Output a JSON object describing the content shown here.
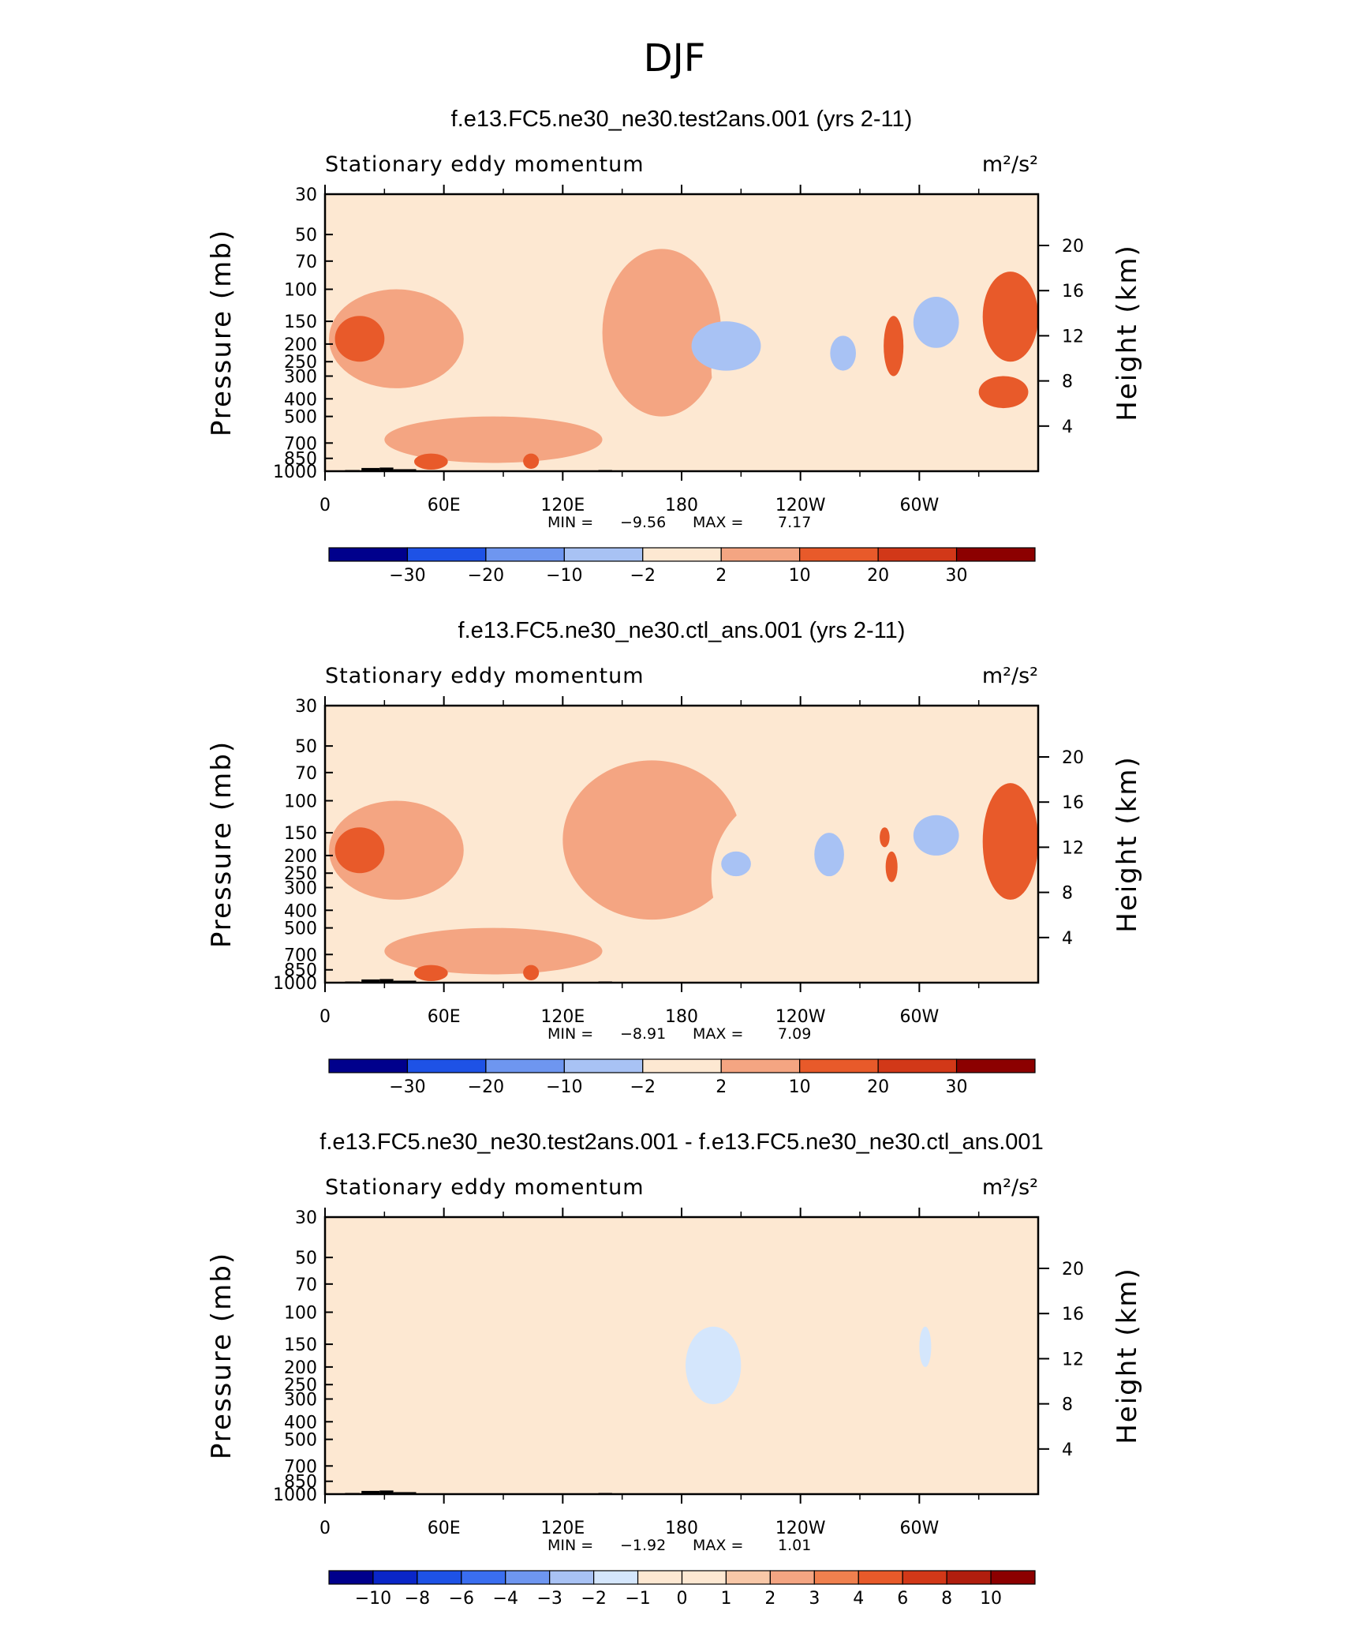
{
  "page_title": "DJF",
  "stats_labels": {
    "min": "MIN =",
    "max": "MAX ="
  },
  "axes": {
    "left_label": "Pressure  (mb)",
    "right_label": "Height  (km)",
    "pressure_ticks": [
      {
        "p": 30,
        "label": "30"
      },
      {
        "p": 50,
        "label": "50"
      },
      {
        "p": 70,
        "label": "70"
      },
      {
        "p": 100,
        "label": "100"
      },
      {
        "p": 150,
        "label": "150"
      },
      {
        "p": 200,
        "label": "200"
      },
      {
        "p": 250,
        "label": "250"
      },
      {
        "p": 300,
        "label": "300"
      },
      {
        "p": 400,
        "label": "400"
      },
      {
        "p": 500,
        "label": "500"
      },
      {
        "p": 700,
        "label": "700"
      },
      {
        "p": 850,
        "label": "850"
      },
      {
        "p": 1000,
        "label": "1000"
      }
    ],
    "height_ticks": [
      {
        "km": 4,
        "label": "4"
      },
      {
        "km": 8,
        "label": "8"
      },
      {
        "km": 12,
        "label": "12"
      },
      {
        "km": 16,
        "label": "16"
      },
      {
        "km": 20,
        "label": "20"
      }
    ],
    "lon_ticks": [
      {
        "lon": 0,
        "label": "0"
      },
      {
        "lon": 60,
        "label": "60E"
      },
      {
        "lon": 120,
        "label": "120E"
      },
      {
        "lon": 180,
        "label": "180"
      },
      {
        "lon": 240,
        "label": "120W"
      },
      {
        "lon": 300,
        "label": "60W"
      }
    ],
    "lon_minor_ticks": [
      30,
      90,
      150,
      210,
      270,
      330
    ],
    "lon_range": [
      0,
      360
    ],
    "p_range": [
      1000,
      30
    ]
  },
  "colors": {
    "blues": [
      "#00008c",
      "#0a26c8",
      "#1e52e6",
      "#3a6ef0",
      "#6e96f0",
      "#a8c2f4",
      "#d4e6fc"
    ],
    "reds": [
      "#fde8d2",
      "#f8c8a8",
      "#f4a582",
      "#f0804e",
      "#e85a2a",
      "#d23818",
      "#b01e0e",
      "#8c0000"
    ],
    "topo": "#000000"
  },
  "panels": [
    {
      "title": "f.e13.FC5.ne30_ne30.test2ans.001 (yrs 2-11)",
      "variable": "Stationary eddy momentum",
      "units": "m²/s²",
      "min": "−9.56",
      "max": "7.17",
      "colorbar_labels": [
        "−30",
        "−20",
        "−10",
        "−2",
        "2",
        "10",
        "20",
        "30"
      ]
    },
    {
      "title": "f.e13.FC5.ne30_ne30.ctl_ans.001 (yrs 2-11)",
      "variable": "Stationary eddy momentum",
      "units": "m²/s²",
      "min": "−8.91",
      "max": "7.09",
      "colorbar_labels": [
        "−30",
        "−20",
        "−10",
        "−2",
        "2",
        "10",
        "20",
        "30"
      ]
    },
    {
      "title": "f.e13.FC5.ne30_ne30.test2ans.001 - f.e13.FC5.ne30_ne30.ctl_ans.001",
      "variable": "Stationary eddy momentum",
      "units": "m²/s²",
      "min": "−1.92",
      "max": "1.01",
      "colorbar_labels": [
        "−10",
        "−8",
        "−6",
        "−4",
        "−3",
        "−2",
        "−1",
        "0",
        "1",
        "2",
        "3",
        "4",
        "6",
        "8",
        "10"
      ]
    }
  ],
  "chart_data": [
    {
      "type": "heatmap",
      "title": "f.e13.FC5.ne30_ne30.test2ans.001 (yrs 2-11)",
      "subtitle": "Stationary eddy momentum",
      "units": "m²/s²",
      "xlabel": "",
      "ylabel": "Pressure  (mb)",
      "y2label": "Height  (km)",
      "xlim": [
        0,
        360
      ],
      "ylim": [
        1000,
        30
      ],
      "y_scale": "log",
      "contour_levels": [
        -30,
        -20,
        -10,
        -2,
        2,
        10,
        20,
        30
      ],
      "min": -9.56,
      "max": 7.17,
      "features": [
        {
          "lon": 2,
          "lon2": 70,
          "p": 100,
          "p2": 350,
          "value": 2
        },
        {
          "lon": 5,
          "lon2": 30,
          "p": 140,
          "p2": 250,
          "value": 10
        },
        {
          "lon": 30,
          "lon2": 140,
          "p": 500,
          "p2": 900,
          "value": 2
        },
        {
          "lon": 140,
          "lon2": 200,
          "p": 60,
          "p2": 500,
          "value": 2
        },
        {
          "lon": 195,
          "lon2": 275,
          "p": 90,
          "p2": 800,
          "value": -2
        },
        {
          "lon": 185,
          "lon2": 220,
          "p": 150,
          "p2": 280,
          "value": -10
        },
        {
          "lon": 255,
          "lon2": 268,
          "p": 180,
          "p2": 280,
          "value": -10
        },
        {
          "lon": 282,
          "lon2": 292,
          "p": 140,
          "p2": 300,
          "value": 10
        },
        {
          "lon": 292,
          "lon2": 330,
          "p": 80,
          "p2": 450,
          "value": -2
        },
        {
          "lon": 297,
          "lon2": 320,
          "p": 110,
          "p2": 210,
          "value": -10
        },
        {
          "lon": 332,
          "lon2": 360,
          "p": 80,
          "p2": 250,
          "value": 10
        },
        {
          "lon": 330,
          "lon2": 355,
          "p": 300,
          "p2": 450,
          "value": 10
        },
        {
          "lon": 45,
          "lon2": 62,
          "p": 800,
          "p2": 980,
          "value": 10
        },
        {
          "lon": 100,
          "lon2": 108,
          "p": 800,
          "p2": 970,
          "value": 10
        }
      ]
    },
    {
      "type": "heatmap",
      "title": "f.e13.FC5.ne30_ne30.ctl_ans.001 (yrs 2-11)",
      "subtitle": "Stationary eddy momentum",
      "units": "m²/s²",
      "xlabel": "",
      "ylabel": "Pressure  (mb)",
      "y2label": "Height  (km)",
      "xlim": [
        0,
        360
      ],
      "ylim": [
        1000,
        30
      ],
      "y_scale": "log",
      "contour_levels": [
        -30,
        -20,
        -10,
        -2,
        2,
        10,
        20,
        30
      ],
      "min": -8.91,
      "max": 7.09,
      "features": [
        {
          "lon": 2,
          "lon2": 70,
          "p": 100,
          "p2": 350,
          "value": 2
        },
        {
          "lon": 5,
          "lon2": 30,
          "p": 140,
          "p2": 250,
          "value": 10
        },
        {
          "lon": 30,
          "lon2": 140,
          "p": 500,
          "p2": 900,
          "value": 2
        },
        {
          "lon": 120,
          "lon2": 210,
          "p": 60,
          "p2": 450,
          "value": 2
        },
        {
          "lon": 195,
          "lon2": 275,
          "p": 90,
          "p2": 800,
          "value": -2
        },
        {
          "lon": 200,
          "lon2": 215,
          "p": 190,
          "p2": 260,
          "value": -10
        },
        {
          "lon": 247,
          "lon2": 262,
          "p": 150,
          "p2": 260,
          "value": -10
        },
        {
          "lon": 280,
          "lon2": 285,
          "p": 140,
          "p2": 180,
          "value": 10
        },
        {
          "lon": 283,
          "lon2": 289,
          "p": 190,
          "p2": 280,
          "value": 10
        },
        {
          "lon": 292,
          "lon2": 330,
          "p": 80,
          "p2": 450,
          "value": -2
        },
        {
          "lon": 297,
          "lon2": 320,
          "p": 120,
          "p2": 200,
          "value": -10
        },
        {
          "lon": 332,
          "lon2": 360,
          "p": 80,
          "p2": 350,
          "value": 10
        },
        {
          "lon": 45,
          "lon2": 62,
          "p": 800,
          "p2": 980,
          "value": 10
        },
        {
          "lon": 100,
          "lon2": 108,
          "p": 800,
          "p2": 970,
          "value": 10
        }
      ]
    },
    {
      "type": "heatmap",
      "title": "f.e13.FC5.ne30_ne30.test2ans.001 - f.e13.FC5.ne30_ne30.ctl_ans.001",
      "subtitle": "Stationary eddy momentum",
      "units": "m²/s²",
      "xlabel": "",
      "ylabel": "Pressure  (mb)",
      "y2label": "Height  (km)",
      "xlim": [
        0,
        360
      ],
      "ylim": [
        1000,
        30
      ],
      "y_scale": "log",
      "contour_levels": [
        -10,
        -8,
        -6,
        -4,
        -3,
        -2,
        -1,
        0,
        1,
        2,
        3,
        4,
        6,
        8,
        10
      ],
      "min": -1.92,
      "max": 1.01,
      "features": [
        {
          "lon": 0,
          "lon2": 20,
          "p": 30,
          "p2": 1000,
          "value": 0.5
        },
        {
          "lon": 35,
          "lon2": 60,
          "p": 30,
          "p2": 700,
          "value": 0.5
        },
        {
          "lon": 95,
          "lon2": 150,
          "p": 30,
          "p2": 350,
          "value": 0.5
        },
        {
          "lon": 120,
          "lon2": 175,
          "p": 500,
          "p2": 1000,
          "value": 0.5
        },
        {
          "lon": 220,
          "lon2": 245,
          "p": 30,
          "p2": 900,
          "value": 0.5
        },
        {
          "lon": 250,
          "lon2": 265,
          "p": 30,
          "p2": 300,
          "value": 0.5
        },
        {
          "lon": 300,
          "lon2": 360,
          "p": 30,
          "p2": 60,
          "value": 0.5
        },
        {
          "lon": 300,
          "lon2": 360,
          "p": 200,
          "p2": 1000,
          "value": 0.5
        },
        {
          "lon": 182,
          "lon2": 210,
          "p": 120,
          "p2": 320,
          "value": -1.5
        },
        {
          "lon": 300,
          "lon2": 306,
          "p": 120,
          "p2": 200,
          "value": -1.5
        }
      ]
    }
  ]
}
